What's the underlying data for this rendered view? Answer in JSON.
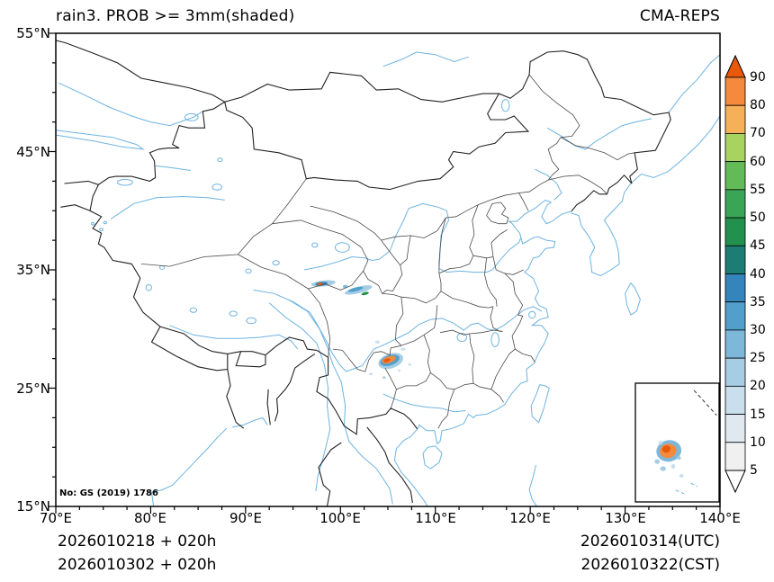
{
  "header": {
    "title": "rain3. PROB >= 3mm(shaded)",
    "model": "CMA-REPS"
  },
  "map": {
    "note": "No: GS (2019) 1786"
  },
  "axes": {
    "x": {
      "min": 70,
      "max": 140,
      "minor_step": 2.5,
      "tick_values": [
        70,
        80,
        90,
        100,
        110,
        120,
        130,
        140
      ],
      "tick_labels": [
        "70°E",
        "80°E",
        "90°E",
        "100°E",
        "110°E",
        "120°E",
        "130°E",
        "140°E"
      ]
    },
    "y": {
      "min": 15,
      "max": 55,
      "minor_step": 2.5,
      "tick_values": [
        55,
        45,
        35,
        25,
        15
      ],
      "tick_labels": [
        "55°N",
        "45°N",
        "35°N",
        "25°N",
        "15°N"
      ]
    }
  },
  "colorbar": {
    "levels": [
      5,
      10,
      15,
      20,
      25,
      30,
      35,
      40,
      45,
      50,
      55,
      60,
      70,
      80,
      90
    ],
    "label_values": [
      "90",
      "80",
      "70",
      "60",
      "55",
      "50",
      "45",
      "40",
      "35",
      "30",
      "25",
      "20",
      "15",
      "10",
      "5"
    ],
    "colors": [
      "#ffffff",
      "#f0f0f0",
      "#dfe9ef",
      "#c9dfee",
      "#a5cde4",
      "#7db8da",
      "#539fcc",
      "#3585bd",
      "#1d7d74",
      "#23914e",
      "#3aa655",
      "#63bb57",
      "#a8d35f",
      "#f6b158",
      "#f58a3c",
      "#e8590c"
    ],
    "river_color": "#6db3e0",
    "border_color": "#222222",
    "province_color": "#4a4a4a"
  },
  "footer": {
    "left_line1": "2026010218 + 020h",
    "left_line2": "2026010302 + 020h",
    "right_line1": "2026010314(UTC)",
    "right_line2": "2026010322(CST)"
  },
  "chart_data": {
    "type": "map",
    "variable": "rain3 probability >= 3mm (shaded)",
    "extent": {
      "lon": [
        70,
        140
      ],
      "lat": [
        15,
        55
      ]
    },
    "shaded_features": [
      {
        "area": "south-qinghai-streak",
        "lon": 98.2,
        "lat": 33.85,
        "w": 2.6,
        "h": 0.5,
        "rot": -6,
        "level": 20
      },
      {
        "area": "south-qinghai-streak",
        "lon": 98.0,
        "lat": 33.82,
        "w": 1.3,
        "h": 0.32,
        "rot": -6,
        "level": 35
      },
      {
        "area": "south-qinghai-streak",
        "lon": 97.85,
        "lat": 33.8,
        "w": 0.6,
        "h": 0.22,
        "rot": -6,
        "level": 90
      },
      {
        "area": "south-gansu-streak",
        "lon": 101.9,
        "lat": 33.3,
        "w": 3.0,
        "h": 0.55,
        "rot": -14,
        "level": 20
      },
      {
        "area": "south-gansu-streak",
        "lon": 101.6,
        "lat": 33.35,
        "w": 1.6,
        "h": 0.32,
        "rot": -14,
        "level": 30
      },
      {
        "area": "south-gansu-streak",
        "lon": 102.6,
        "lat": 33.0,
        "w": 0.8,
        "h": 0.25,
        "rot": -14,
        "level": 45
      },
      {
        "area": "south-gansu-streak",
        "lon": 100.5,
        "lat": 33.6,
        "w": 0.5,
        "h": 0.25,
        "rot": 0,
        "level": 25
      },
      {
        "area": "guizhou-blob",
        "lon": 105.3,
        "lat": 27.3,
        "w": 2.7,
        "h": 1.25,
        "rot": -18,
        "level": 20
      },
      {
        "area": "guizhou-blob",
        "lon": 105.2,
        "lat": 27.35,
        "w": 2.1,
        "h": 0.85,
        "rot": -18,
        "level": 30
      },
      {
        "area": "guizhou-blob",
        "lon": 105.1,
        "lat": 27.4,
        "w": 1.5,
        "h": 0.55,
        "rot": -18,
        "level": 80
      },
      {
        "area": "guizhou-blob",
        "lon": 104.9,
        "lat": 27.35,
        "w": 0.75,
        "h": 0.3,
        "rot": -18,
        "level": 90
      },
      {
        "area": "speck",
        "lon": 103.9,
        "lat": 28.9,
        "w": 0.45,
        "h": 0.25,
        "rot": 0,
        "level": 15
      },
      {
        "area": "speck",
        "lon": 106.6,
        "lat": 28.3,
        "w": 0.5,
        "h": 0.25,
        "rot": 0,
        "level": 15
      },
      {
        "area": "speck",
        "lon": 107.3,
        "lat": 27.0,
        "w": 0.35,
        "h": 0.2,
        "rot": 0,
        "level": 15
      },
      {
        "area": "speck",
        "lon": 103.2,
        "lat": 26.2,
        "w": 0.4,
        "h": 0.2,
        "rot": 0,
        "level": 15
      },
      {
        "area": "speck",
        "lon": 104.6,
        "lat": 25.9,
        "w": 0.35,
        "h": 0.2,
        "rot": 0,
        "level": 20
      },
      {
        "area": "speck",
        "lon": 106.2,
        "lat": 26.5,
        "w": 0.3,
        "h": 0.18,
        "rot": 0,
        "level": 15
      }
    ],
    "inset": {
      "region": "south-china-sea",
      "features": [
        {
          "kind": "ellipse",
          "fx": 0.4,
          "fy": 0.57,
          "w": 0.3,
          "h": 0.18,
          "rot": -10,
          "level": 25
        },
        {
          "kind": "ellipse",
          "fx": 0.39,
          "fy": 0.57,
          "w": 0.2,
          "h": 0.12,
          "rot": -10,
          "level": 80
        },
        {
          "kind": "ellipse",
          "fx": 0.37,
          "fy": 0.555,
          "w": 0.1,
          "h": 0.06,
          "rot": -10,
          "level": 90
        },
        {
          "kind": "ellipse",
          "fx": 0.26,
          "fy": 0.66,
          "w": 0.06,
          "h": 0.04,
          "rot": 0,
          "level": 20
        },
        {
          "kind": "ellipse",
          "fx": 0.33,
          "fy": 0.72,
          "w": 0.07,
          "h": 0.04,
          "rot": 0,
          "level": 20
        },
        {
          "kind": "ellipse",
          "fx": 0.45,
          "fy": 0.7,
          "w": 0.05,
          "h": 0.04,
          "rot": 0,
          "level": 15
        },
        {
          "kind": "ellipse",
          "fx": 0.52,
          "fy": 0.63,
          "w": 0.05,
          "h": 0.03,
          "rot": 0,
          "level": 20
        },
        {
          "kind": "ellipse",
          "fx": 0.3,
          "fy": 0.5,
          "w": 0.05,
          "h": 0.03,
          "rot": 0,
          "level": 15
        },
        {
          "kind": "ellipse",
          "fx": 0.55,
          "fy": 0.78,
          "w": 0.05,
          "h": 0.03,
          "rot": 0,
          "level": 15
        },
        {
          "kind": "dash-dark",
          "x1": 0.7,
          "y1": 0.06,
          "x2": 0.97,
          "y2": 0.27
        },
        {
          "kind": "dash-blue",
          "x1": 0.48,
          "y1": 0.9,
          "x2": 0.58,
          "y2": 0.93
        },
        {
          "kind": "dash-blue",
          "x1": 0.66,
          "y1": 0.84,
          "x2": 0.74,
          "y2": 0.87
        }
      ]
    }
  }
}
